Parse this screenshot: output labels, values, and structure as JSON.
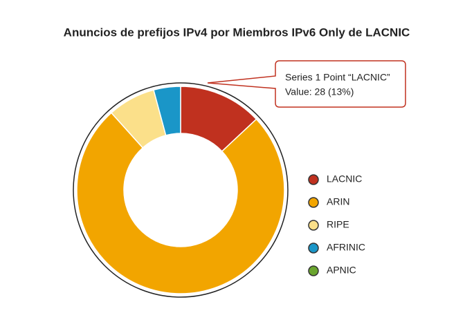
{
  "chart_data": {
    "type": "donut",
    "title": "Anuncios de prefijos IPv4 por Miembros IPv6 Only de LACNIC",
    "categories": [
      "LACNIC",
      "ARIN",
      "RIPE",
      "AFRINIC",
      "APNIC"
    ],
    "values": [
      28,
      162,
      16,
      9,
      0
    ],
    "colors": [
      "#c0311f",
      "#f2a500",
      "#fbe08a",
      "#1a96c8",
      "#6aa52e"
    ],
    "legend": "right",
    "tooltip": {
      "title": "Series 1 Point “LACNIC”",
      "value": "Value: 28 (13%)"
    }
  }
}
